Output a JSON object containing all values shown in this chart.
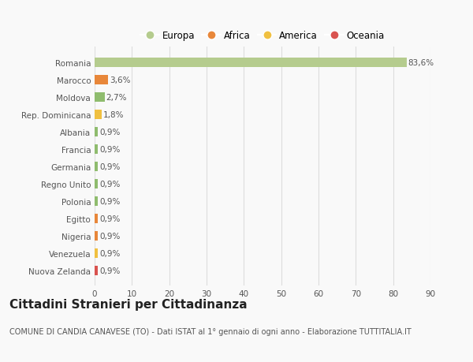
{
  "categories": [
    "Nuova Zelanda",
    "Venezuela",
    "Nigeria",
    "Egitto",
    "Polonia",
    "Regno Unito",
    "Germania",
    "Francia",
    "Albania",
    "Rep. Dominicana",
    "Moldova",
    "Marocco",
    "Romania"
  ],
  "values": [
    0.9,
    0.9,
    0.9,
    0.9,
    0.9,
    0.9,
    0.9,
    0.9,
    0.9,
    1.8,
    2.7,
    3.6,
    83.6
  ],
  "labels": [
    "0,9%",
    "0,9%",
    "0,9%",
    "0,9%",
    "0,9%",
    "0,9%",
    "0,9%",
    "0,9%",
    "0,9%",
    "1,8%",
    "2,7%",
    "3,6%",
    "83,6%"
  ],
  "colors": [
    "#d9534f",
    "#f0c040",
    "#e8873a",
    "#e8873a",
    "#8fbc6e",
    "#8fbc6e",
    "#8fbc6e",
    "#8fbc6e",
    "#8fbc6e",
    "#f0c040",
    "#8fbc6e",
    "#e8873a",
    "#b5cc8e"
  ],
  "legend_labels": [
    "Europa",
    "Africa",
    "America",
    "Oceania"
  ],
  "legend_colors": [
    "#b5cc8e",
    "#e8873a",
    "#f0c040",
    "#d9534f"
  ],
  "title": "Cittadini Stranieri per Cittadinanza",
  "subtitle": "COMUNE DI CANDIA CANAVESE (TO) - Dati ISTAT al 1° gennaio di ogni anno - Elaborazione TUTTITALIA.IT",
  "xlim": [
    0,
    90
  ],
  "xticks": [
    0,
    10,
    20,
    30,
    40,
    50,
    60,
    70,
    80,
    90
  ],
  "background_color": "#f9f9f9",
  "grid_color": "#dddddd",
  "bar_height": 0.55,
  "title_fontsize": 11,
  "subtitle_fontsize": 7,
  "label_fontsize": 7.5,
  "tick_fontsize": 7.5,
  "legend_fontsize": 8.5
}
